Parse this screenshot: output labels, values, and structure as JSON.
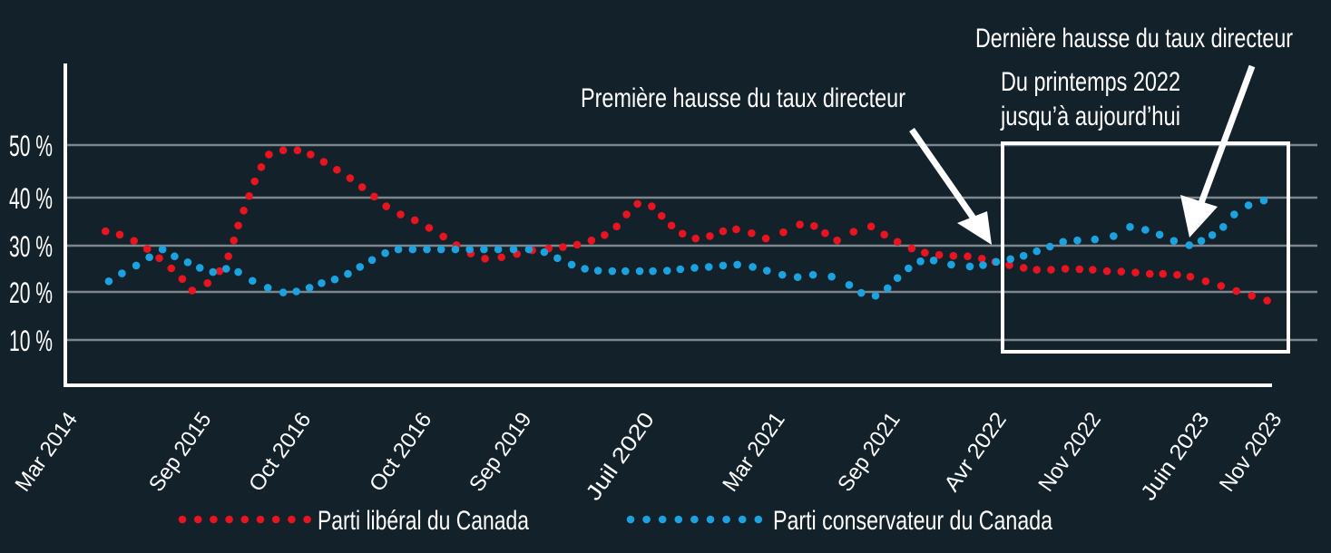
{
  "colors": {
    "background": "#13212a",
    "liberal": "#e8141f",
    "conservative": "#1aa3e0",
    "grid": "#7d868c",
    "axis": "#ffffff"
  },
  "chart_data": {
    "type": "scatter",
    "title": "",
    "xlabel": "",
    "ylabel": "",
    "ylim": [
      0,
      50
    ],
    "xlim": [
      0,
      11
    ],
    "grid": true,
    "legend_position": "bottom",
    "y_ticks": [
      {
        "value": 50,
        "label": "50 %"
      },
      {
        "value": 40,
        "label": "40 %"
      },
      {
        "value": 30,
        "label": "30 %"
      },
      {
        "value": 20,
        "label": "20 %"
      },
      {
        "value": 10,
        "label": "10 %"
      }
    ],
    "x_ticks": [
      {
        "x": 0.05,
        "label": "Mar 2014"
      },
      {
        "x": 1.27,
        "label": "Sep 2015"
      },
      {
        "x": 2.18,
        "label": "Oct 2016"
      },
      {
        "x": 3.28,
        "label": "Oct 2016"
      },
      {
        "x": 4.19,
        "label": "Sep 2019"
      },
      {
        "x": 5.31,
        "label": "Juil 2020"
      },
      {
        "x": 6.5,
        "label": "Mar 2021"
      },
      {
        "x": 7.55,
        "label": "Sep 2021"
      },
      {
        "x": 8.52,
        "label": "Avr 2022"
      },
      {
        "x": 9.38,
        "label": "Nov 2022"
      },
      {
        "x": 10.37,
        "label": "Juin 2023"
      },
      {
        "x": 11.03,
        "label": "Nov 2023"
      }
    ],
    "series": [
      {
        "name": "Parti libéral du Canada",
        "color": "#e8141f",
        "x": [
          0.3,
          0.43,
          0.56,
          0.68,
          0.79,
          0.9,
          1.0,
          1.09,
          1.23,
          1.34,
          1.42,
          1.47,
          1.51,
          1.56,
          1.61,
          1.66,
          1.72,
          1.79,
          1.92,
          2.05,
          2.17,
          2.29,
          2.41,
          2.53,
          2.64,
          2.75,
          2.86,
          2.99,
          3.12,
          3.25,
          3.38,
          3.5,
          3.63,
          3.76,
          3.91,
          4.05,
          4.19,
          4.34,
          4.47,
          4.6,
          4.73,
          4.85,
          4.96,
          5.05,
          5.15,
          5.28,
          5.37,
          5.46,
          5.56,
          5.68,
          5.81,
          5.93,
          6.05,
          6.19,
          6.32,
          6.48,
          6.63,
          6.76,
          6.86,
          6.97,
          7.12,
          7.28,
          7.4,
          7.52,
          7.65,
          7.77,
          7.9,
          8.03,
          8.16,
          8.29,
          8.41,
          8.54,
          8.67,
          8.79,
          8.92,
          9.05,
          9.18,
          9.3,
          9.43,
          9.56,
          9.69,
          9.82,
          9.94,
          10.07,
          10.19,
          10.33,
          10.47,
          10.61,
          10.75,
          10.89
        ],
        "values": [
          33.0,
          32.3,
          31.0,
          29.3,
          27.3,
          25.1,
          22.8,
          20.3,
          21.9,
          24.5,
          27.7,
          31.1,
          34.2,
          37.3,
          40.3,
          43.1,
          45.8,
          48.2,
          49.0,
          49.0,
          48.2,
          46.8,
          45.3,
          43.7,
          42.0,
          40.2,
          38.2,
          36.5,
          35.3,
          33.7,
          31.9,
          30.1,
          28.3,
          27.2,
          27.5,
          28.2,
          29.0,
          29.4,
          29.7,
          30.2,
          31.1,
          32.2,
          34.0,
          36.5,
          38.7,
          38.2,
          36.2,
          34.2,
          32.5,
          31.5,
          32.0,
          33.0,
          33.4,
          32.6,
          31.5,
          32.8,
          34.4,
          34.1,
          32.6,
          31.1,
          32.9,
          34.0,
          32.3,
          30.8,
          29.4,
          28.5,
          28.0,
          27.8,
          27.7,
          27.2,
          26.5,
          25.8,
          25.2,
          24.8,
          24.8,
          25.0,
          24.9,
          24.8,
          24.5,
          24.4,
          24.2,
          23.9,
          23.9,
          23.7,
          23.3,
          22.3,
          21.3,
          20.2,
          19.2,
          18.2
        ]
      },
      {
        "name": "Parti conservateur du Canada",
        "color": "#1aa3e0",
        "x": [
          0.33,
          0.45,
          0.58,
          0.7,
          0.82,
          0.93,
          1.05,
          1.16,
          1.28,
          1.4,
          1.51,
          1.64,
          1.78,
          1.92,
          2.04,
          2.16,
          2.27,
          2.39,
          2.51,
          2.62,
          2.73,
          2.85,
          2.97,
          3.1,
          3.23,
          3.36,
          3.49,
          3.62,
          3.75,
          3.88,
          4.02,
          4.16,
          4.3,
          4.42,
          4.55,
          4.67,
          4.79,
          4.92,
          5.04,
          5.17,
          5.29,
          5.42,
          5.54,
          5.67,
          5.8,
          5.93,
          6.06,
          6.2,
          6.33,
          6.47,
          6.61,
          6.75,
          6.92,
          7.08,
          7.19,
          7.32,
          7.43,
          7.52,
          7.62,
          7.73,
          7.85,
          8.01,
          8.18,
          8.3,
          8.42,
          8.55,
          8.67,
          8.79,
          8.91,
          9.03,
          9.16,
          9.32,
          9.49,
          9.64,
          9.78,
          9.91,
          10.04,
          10.18,
          10.29,
          10.39,
          10.49,
          10.59,
          10.72,
          10.86
        ],
        "values": [
          22.3,
          24.0,
          25.7,
          27.5,
          29.2,
          27.7,
          26.4,
          25.2,
          24.3,
          25.0,
          24.3,
          22.4,
          20.9,
          19.9,
          20.1,
          20.9,
          21.9,
          22.7,
          23.9,
          25.4,
          26.9,
          28.4,
          29.2,
          29.2,
          29.2,
          29.2,
          29.2,
          29.2,
          29.2,
          29.2,
          29.2,
          29.2,
          28.6,
          27.3,
          25.9,
          25.0,
          24.6,
          24.5,
          24.5,
          24.5,
          24.5,
          24.6,
          24.9,
          25.2,
          25.4,
          25.7,
          25.9,
          25.4,
          24.6,
          23.7,
          23.2,
          23.7,
          23.3,
          21.5,
          19.8,
          19.2,
          20.8,
          23.0,
          25.1,
          26.6,
          26.8,
          25.9,
          25.5,
          25.8,
          26.5,
          27.1,
          27.8,
          28.8,
          29.8,
          30.8,
          31.1,
          31.3,
          32.0,
          33.9,
          33.3,
          32.3,
          31.0,
          30.1,
          31.0,
          32.2,
          33.9,
          36.5,
          38.4,
          39.4
        ]
      }
    ],
    "annotations": {
      "first_hike": "Première hausse du taux directeur",
      "last_hike": "Dernière hausse du taux directeur",
      "period_line1": "Du printemps 2022",
      "period_line2": "jusqu’à aujourd’hui"
    },
    "legend": [
      {
        "label": "Parti libéral du Canada",
        "color": "#e8141f"
      },
      {
        "label": "Parti conservateur du Canada",
        "color": "#1aa3e0"
      }
    ]
  }
}
